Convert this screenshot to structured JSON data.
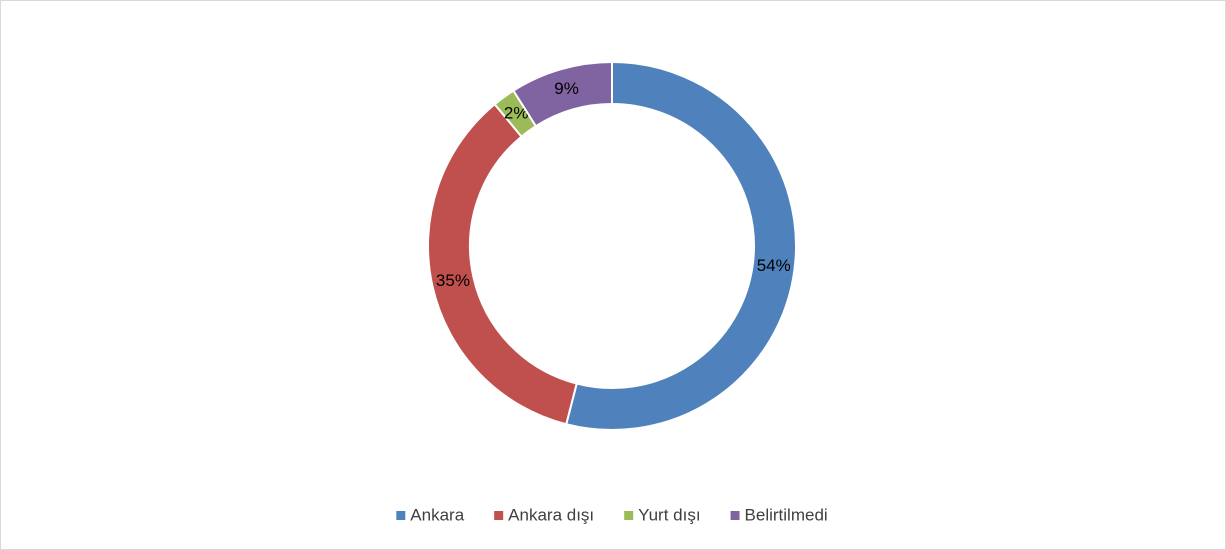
{
  "chart_data": {
    "type": "donut",
    "categories": [
      "Ankara",
      "Ankara dışı",
      "Yurt dışı",
      "Belirtilmedi"
    ],
    "values": [
      54,
      35,
      2,
      9
    ],
    "value_labels": [
      "54%",
      "35%",
      "2%",
      "9%"
    ],
    "colors": [
      "#4f81bd",
      "#c0504d",
      "#9bbb59",
      "#8064a2"
    ],
    "legend": "bottom"
  }
}
